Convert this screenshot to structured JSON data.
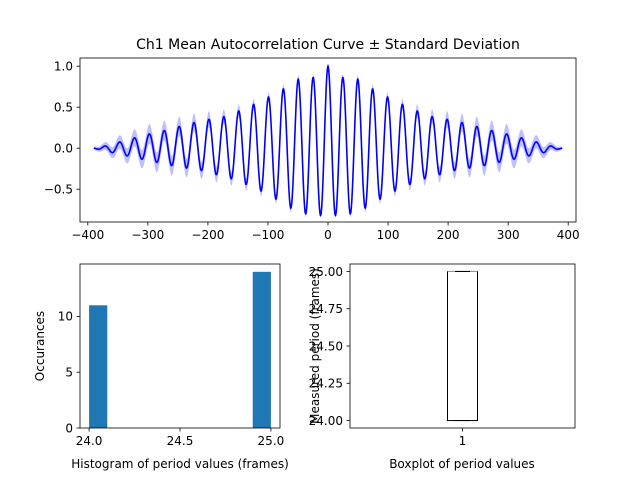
{
  "chart_data": [
    {
      "type": "line",
      "title": "Ch1 Mean Autocorrelation Curve ± Standard Deviation",
      "xlabel": "",
      "ylabel": "",
      "xlim": [
        -413,
        413
      ],
      "ylim": [
        -0.9,
        1.1
      ],
      "xticks": [
        "−400",
        "−300",
        "−200",
        "−100",
        "0",
        "100",
        "200",
        "300",
        "400"
      ],
      "xtick_values": [
        -400,
        -300,
        -200,
        -100,
        0,
        100,
        200,
        300,
        400
      ],
      "yticks": [
        "−0.5",
        "0.0",
        "0.5",
        "1.0"
      ],
      "ytick_values": [
        -0.5,
        0,
        0.5,
        1.0
      ],
      "series": [
        {
          "color": "#0000ff",
          "band_color": "#0000ff",
          "x_range": [
            -390,
            390
          ],
          "period": 24.8,
          "peaks": [
            [
              0,
              1.0
            ],
            [
              25,
              0.86
            ],
            [
              50,
              0.84
            ],
            [
              75,
              0.72
            ],
            [
              100,
              0.62
            ],
            [
              125,
              0.53
            ],
            [
              150,
              0.45
            ],
            [
              175,
              0.38
            ],
            [
              200,
              0.35
            ],
            [
              225,
              0.31
            ],
            [
              250,
              0.26
            ],
            [
              275,
              0.21
            ],
            [
              300,
              0.17
            ],
            [
              325,
              0.12
            ],
            [
              350,
              0.07
            ],
            [
              375,
              0.02
            ],
            [
              390,
              0.0
            ]
          ],
          "troughs": [
            [
              12,
              -0.82
            ],
            [
              37,
              -0.8
            ],
            [
              62,
              -0.73
            ],
            [
              87,
              -0.62
            ],
            [
              112,
              -0.52
            ],
            [
              137,
              -0.44
            ],
            [
              162,
              -0.37
            ],
            [
              187,
              -0.32
            ],
            [
              212,
              -0.27
            ],
            [
              237,
              -0.24
            ],
            [
              262,
              -0.21
            ],
            [
              287,
              -0.17
            ],
            [
              312,
              -0.13
            ],
            [
              337,
              -0.09
            ],
            [
              362,
              -0.05
            ],
            [
              390,
              0.0
            ]
          ],
          "std": [
            [
              0,
              0.0
            ],
            [
              25,
              0.04
            ],
            [
              100,
              0.06
            ],
            [
              200,
              0.1
            ],
            [
              250,
              0.12
            ],
            [
              300,
              0.12
            ],
            [
              350,
              0.08
            ],
            [
              390,
              0.02
            ]
          ]
        }
      ],
      "grid": false
    },
    {
      "type": "bar",
      "title": "",
      "xlabel": "Histogram of period values (frames)",
      "ylabel": "Occurances",
      "xlim": [
        23.95,
        25.05
      ],
      "ylim": [
        0,
        14.7
      ],
      "xticks": [
        "24.0",
        "24.5",
        "25.0"
      ],
      "xtick_values": [
        24.0,
        24.5,
        25.0
      ],
      "yticks": [
        "0",
        "5",
        "10"
      ],
      "ytick_values": [
        0,
        5,
        10
      ],
      "bins": [
        [
          24.0,
          24.1,
          11
        ],
        [
          24.9,
          25.0,
          14
        ]
      ],
      "color": "#1f77b4",
      "grid": false
    },
    {
      "type": "boxplot",
      "title": "",
      "xlabel": "Boxplot of period values",
      "ylabel": "Measured period (frames)",
      "xlim": [
        0.5,
        1.5
      ],
      "ylim": [
        23.95,
        25.05
      ],
      "xticks": [
        "1"
      ],
      "xtick_values": [
        1
      ],
      "yticks": [
        "24.00",
        "24.25",
        "24.50",
        "24.75",
        "25.00"
      ],
      "ytick_values": [
        24.0,
        24.25,
        24.5,
        24.75,
        25.0
      ],
      "box": {
        "position": 1,
        "min": 24.0,
        "q1": 24.0,
        "median": 25.0,
        "q3": 25.0,
        "max": 25.0
      },
      "box_color": "#000000",
      "median_color": "#ff7f0e",
      "grid": false
    }
  ]
}
